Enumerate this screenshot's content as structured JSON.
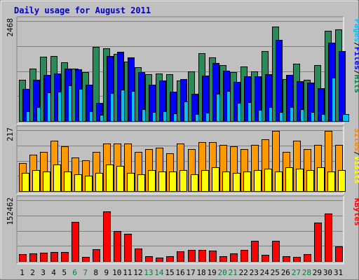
{
  "chart_data": {
    "type": "bar",
    "title": "Daily usage for August 2011",
    "categories": [
      "1",
      "2",
      "3",
      "4",
      "5",
      "6",
      "7",
      "8",
      "9",
      "10",
      "11",
      "12",
      "13",
      "14",
      "15",
      "16",
      "17",
      "18",
      "19",
      "20",
      "21",
      "22",
      "23",
      "24",
      "25",
      "26",
      "27",
      "28",
      "29",
      "30",
      "31"
    ],
    "weekend_days": [
      "6",
      "7",
      "13",
      "14",
      "20",
      "21",
      "27",
      "28"
    ],
    "panels": [
      {
        "id": "top",
        "ymax_label": "2468",
        "ymax": 2468,
        "legend": [
          {
            "text": "Pages",
            "color": "#00c0ff"
          },
          {
            "text": "/",
            "color": "#000000"
          },
          {
            "text": "Files",
            "color": "#0000ff"
          },
          {
            "text": "/",
            "color": "#000000"
          },
          {
            "text": "Hits",
            "color": "#008040"
          }
        ],
        "series": [
          {
            "name": "Hits",
            "color": "#2a8a5a",
            "values": [
              1020,
              1300,
              1590,
              1600,
              1450,
              1300,
              1200,
              1830,
              1800,
              1650,
              1460,
              1330,
              1150,
              1180,
              1150,
              1000,
              1220,
              1680,
              1570,
              1380,
              1200,
              1350,
              1230,
              1730,
              2330,
              1030,
              1420,
              1010,
              1380,
              2230,
              2260
            ]
          },
          {
            "name": "Files",
            "color": "#0000ff",
            "values": [
              800,
              1020,
              1140,
              1180,
              1300,
              1270,
              900,
              450,
              1600,
              1710,
              1570,
              1210,
              900,
              1000,
              720,
              1030,
              680,
              1120,
              1430,
              1240,
              960,
              1100,
              1100,
              1150,
              2000,
              1140,
              980,
              950,
              810,
              1940,
              1720
            ]
          },
          {
            "name": "Pages",
            "color": "#00c0ff",
            "values": [
              250,
              350,
              700,
              720,
              880,
              790,
              240,
              160,
              690,
              770,
              740,
              290,
              230,
              240,
              190,
              480,
              170,
              200,
              680,
              750,
              450,
              460,
              270,
              340,
              230,
              350,
              300,
              230,
              170,
              1070,
              170
            ]
          }
        ]
      },
      {
        "id": "mid",
        "ymax_label": "217",
        "ymax": 217,
        "legend": [
          {
            "text": "Sites",
            "color": "#ff8000"
          },
          {
            "text": "/",
            "color": "#000000"
          },
          {
            "text": "Visits",
            "color": "#ffff00"
          }
        ],
        "series": [
          {
            "name": "Visits",
            "color": "#ff9900",
            "values": [
              100,
              130,
              140,
              180,
              160,
              120,
              110,
              140,
              170,
              170,
              170,
              140,
              150,
              155,
              135,
              170,
              150,
              175,
              175,
              165,
              160,
              150,
              165,
              185,
              215,
              140,
              180,
              150,
              165,
              215,
              165
            ]
          },
          {
            "name": "Sites",
            "color": "#ffff00",
            "values": [
              65,
              75,
              70,
              95,
              70,
              60,
              55,
              65,
              95,
              90,
              65,
              60,
              75,
              70,
              70,
              75,
              60,
              75,
              85,
              70,
              65,
              70,
              75,
              80,
              70,
              85,
              80,
              75,
              85,
              70,
              75
            ]
          }
        ]
      },
      {
        "id": "bot",
        "ymax_label": "152462",
        "ymax": 152462,
        "legend": [
          {
            "text": "KBytes",
            "color": "#ff0000"
          }
        ],
        "series": [
          {
            "name": "KBytes",
            "color": "#ff0000",
            "values": [
              18200,
              19000,
              21000,
              22500,
              22500,
              99000,
              10500,
              30000,
              124000,
              75000,
              68500,
              31000,
              12000,
              9000,
              12000,
              25000,
              28000,
              27500,
              26500,
              12000,
              20000,
              28000,
              51000,
              16000,
              50000,
              12000,
              10000,
              17000,
              97000,
              119000,
              37000
            ]
          }
        ]
      }
    ],
    "grid": true
  }
}
